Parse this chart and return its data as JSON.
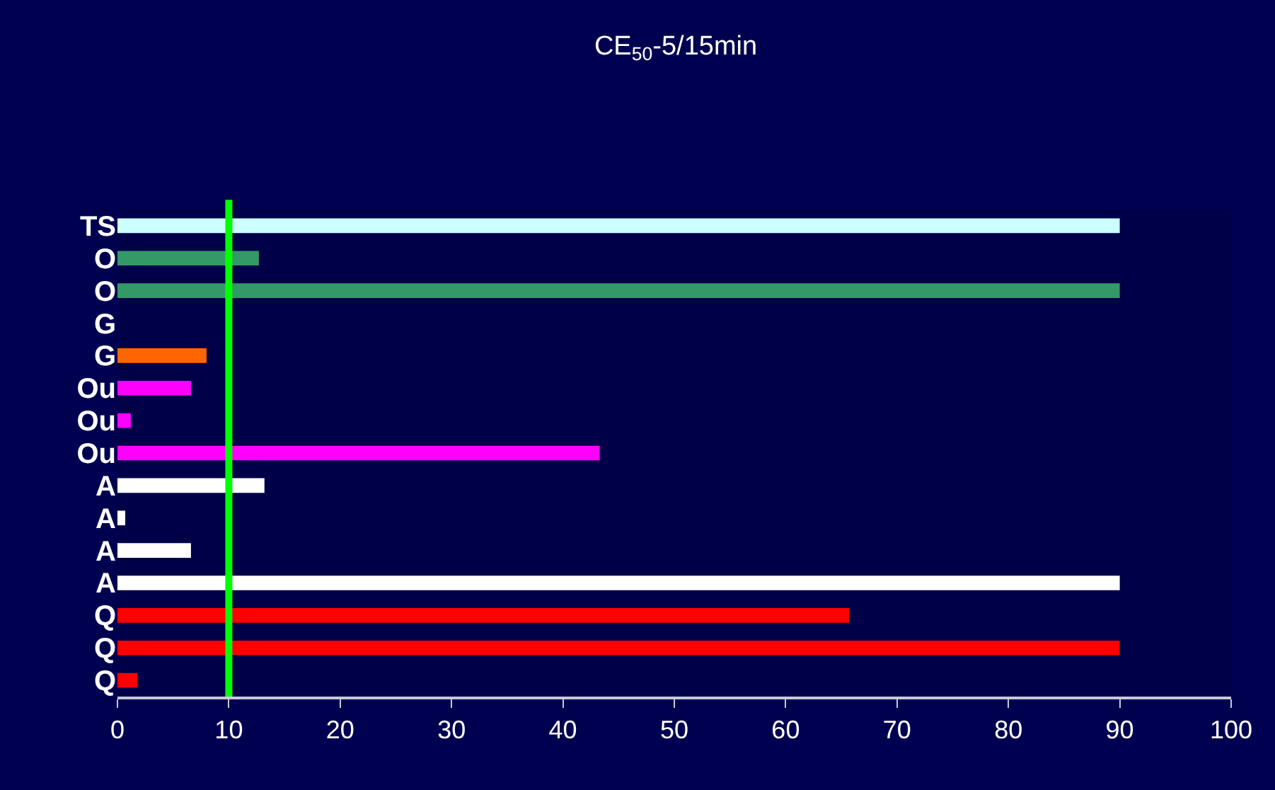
{
  "chart_data": {
    "type": "bar",
    "orientation": "horizontal",
    "title": "CE$_{50}$-5/15min",
    "categories": [
      "TS",
      "O",
      "O",
      "G",
      "G",
      "Ou",
      "Ou",
      "Ou",
      "A",
      "A",
      "A",
      "A",
      "Q",
      "Q",
      "Q"
    ],
    "values": [
      90,
      12.7,
      90,
      null,
      8.0,
      6.6,
      1.2,
      43.3,
      13.2,
      0.7,
      6.6,
      90,
      65.7,
      90,
      1.8
    ],
    "colors": [
      "#ccffff",
      "#339966",
      "#339966",
      "#ff6600",
      "#ff6600",
      "#ff00ff",
      "#ff00ff",
      "#ff00ff",
      "#ffffff",
      "#ffffff",
      "#ffffff",
      "#ffffff",
      "#ff0000",
      "#ff0000",
      "#ff0000"
    ],
    "xlim": [
      0,
      100
    ],
    "xticks": [
      0,
      10,
      20,
      30,
      40,
      50,
      60,
      70,
      80,
      90,
      100
    ],
    "ref_lines": [
      {
        "axis": "x",
        "value": 10,
        "color": "#00ff00"
      }
    ],
    "grid": false,
    "legend": false
  }
}
